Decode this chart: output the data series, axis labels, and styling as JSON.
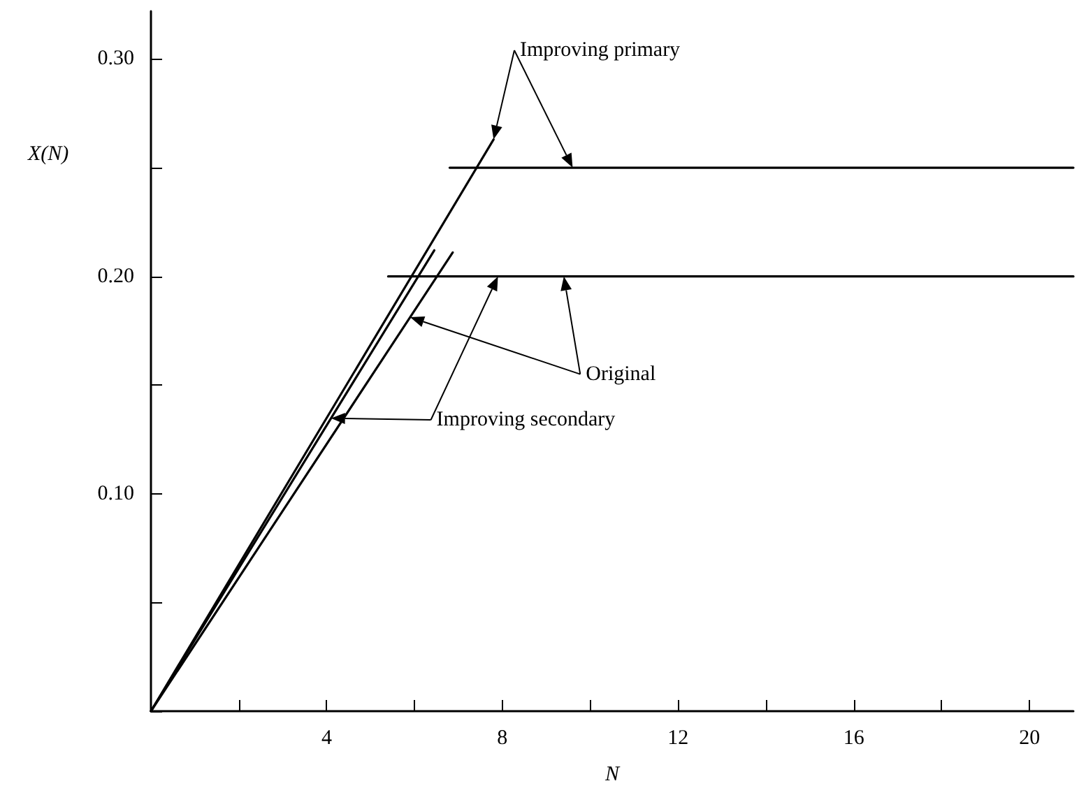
{
  "chart_data": {
    "type": "line",
    "xlabel": "N",
    "ylabel": "X(N)",
    "series": [
      {
        "color": "#000000",
        "x": [
          0,
          7.8
        ],
        "values": [
          0,
          0.263
        ]
      },
      {
        "color": "#000000",
        "x": [
          6.8,
          21
        ],
        "values": [
          0.25,
          0.25
        ]
      },
      {
        "color": "#000000",
        "x": [
          0,
          6.45
        ],
        "values": [
          0,
          0.212
        ]
      },
      {
        "color": "#000000",
        "x": [
          0,
          6.87
        ],
        "values": [
          0,
          0.211
        ]
      },
      {
        "color": "#000000",
        "x": [
          5.4,
          21
        ],
        "values": [
          0.2,
          0.2
        ]
      }
    ],
    "annotations": [
      "Improving primary",
      "Original",
      "Improving secondary"
    ],
    "xlim": [
      0,
      21
    ],
    "ylim": [
      0,
      0.322
    ],
    "xticks": [
      {
        "value": 2,
        "label": null
      },
      4,
      {
        "value": 6,
        "label": null
      },
      8,
      {
        "value": 10,
        "label": null
      },
      12,
      {
        "value": 14,
        "label": null
      },
      16,
      {
        "value": 18,
        "label": null
      },
      20
    ],
    "yticks": [
      {
        "value": 0,
        "label": null
      },
      {
        "value": 0.05,
        "label": null
      },
      {
        "value": 0.1,
        "label": "0.10"
      },
      {
        "value": 0.15,
        "label": null
      },
      {
        "value": 0.2,
        "label": "0.20"
      },
      {
        "value": 0.25,
        "label": null
      },
      {
        "value": 0.3,
        "label": "0.30"
      }
    ],
    "grid": false,
    "marker": "none",
    "line_style": "solid"
  }
}
